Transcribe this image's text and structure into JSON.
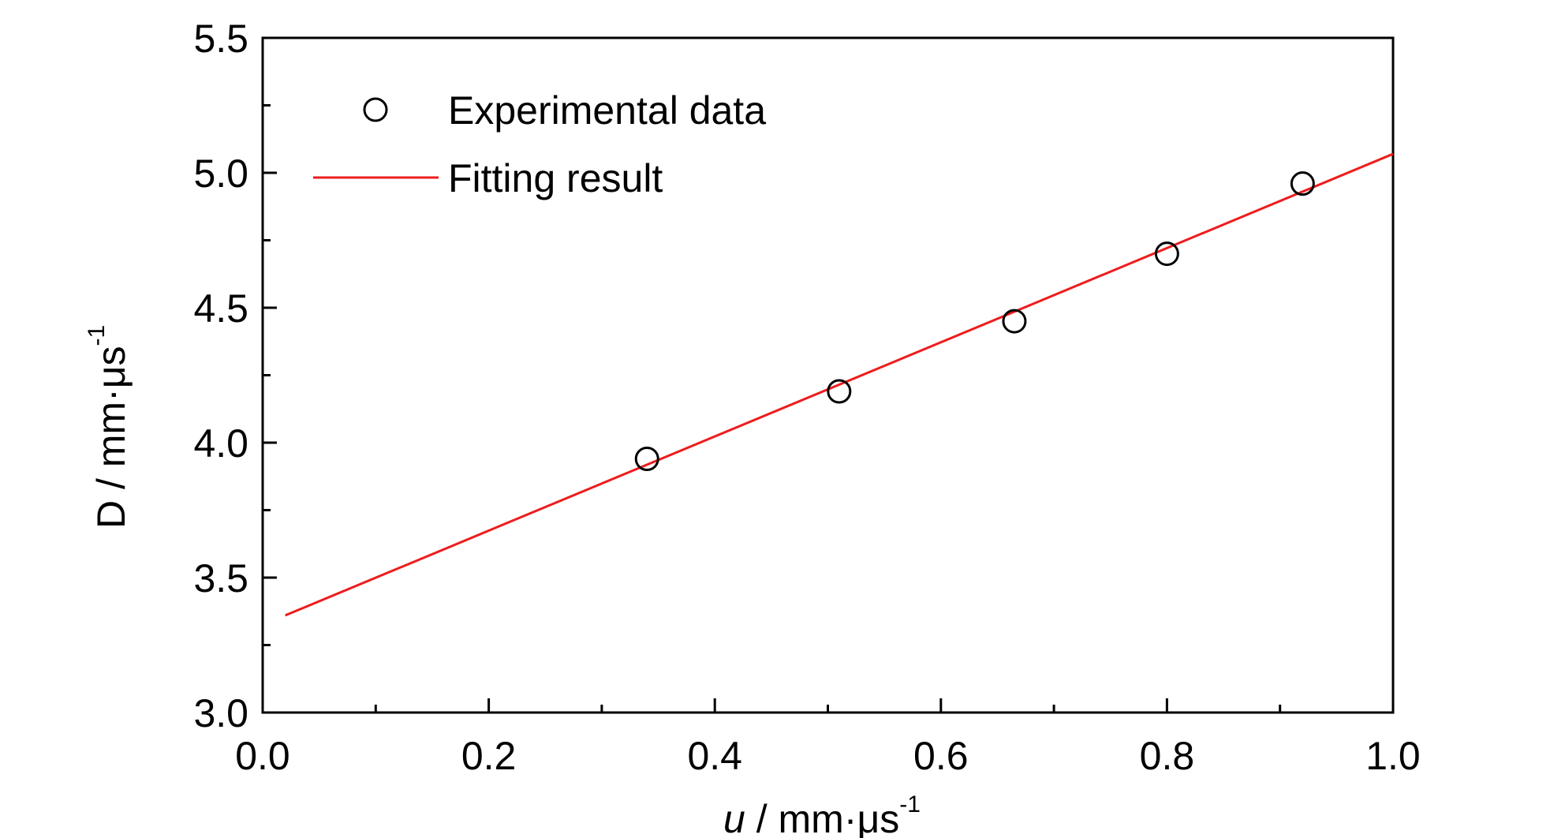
{
  "chart_data": {
    "type": "scatter",
    "x_axis": {
      "label_var": "u",
      "label_rest": " / mm·μs",
      "label_sup": "-1",
      "range": [
        0.0,
        1.0
      ],
      "ticks": [
        0.0,
        0.2,
        0.4,
        0.6,
        0.8,
        1.0
      ],
      "tick_labels": [
        "0.0",
        "0.2",
        "0.4",
        "0.6",
        "0.8",
        "1.0"
      ],
      "minor_step": 0.1
    },
    "y_axis": {
      "label_main": "D / mm·μs",
      "label_sup": "-1",
      "range": [
        3.0,
        5.5
      ],
      "ticks": [
        3.0,
        3.5,
        4.0,
        4.5,
        5.0,
        5.5
      ],
      "tick_labels": [
        "3.0",
        "3.5",
        "4.0",
        "4.5",
        "5.0",
        "5.5"
      ],
      "minor_step": 0.25
    },
    "series": [
      {
        "name": "Experimental data",
        "kind": "scatter",
        "marker": "open-circle",
        "color": "#000000",
        "points": [
          {
            "x": 0.34,
            "y": 3.94
          },
          {
            "x": 0.51,
            "y": 4.19
          },
          {
            "x": 0.665,
            "y": 4.45
          },
          {
            "x": 0.8,
            "y": 4.7
          },
          {
            "x": 0.92,
            "y": 4.96
          }
        ]
      },
      {
        "name": "Fitting result",
        "kind": "line",
        "color": "#ee1c1c",
        "points": [
          {
            "x": 0.02,
            "y": 3.36
          },
          {
            "x": 1.0,
            "y": 5.07
          }
        ]
      }
    ],
    "legend": {
      "position": "top-left"
    },
    "grid": false
  }
}
